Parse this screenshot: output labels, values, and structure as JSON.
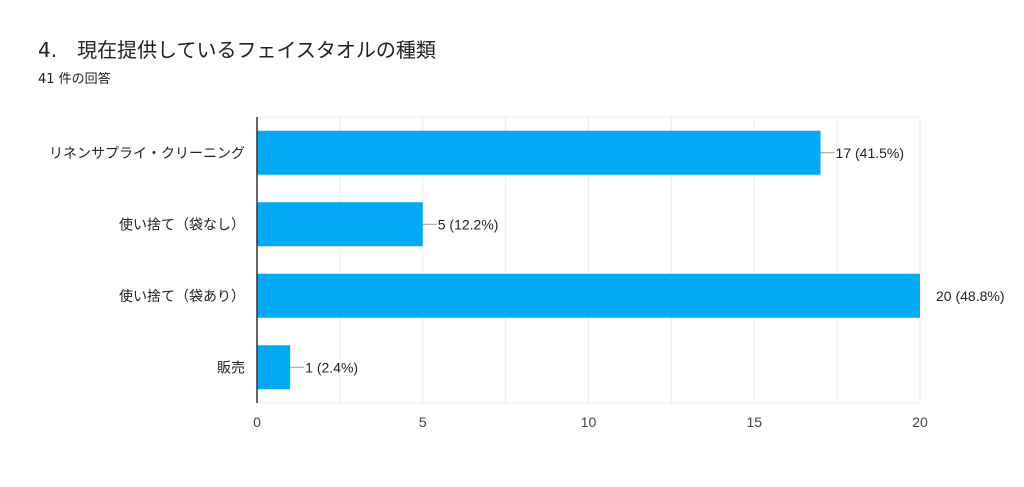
{
  "chart_data": {
    "type": "bar",
    "orientation": "horizontal",
    "title": "4.　現在提供しているフェイスタオルの種類",
    "subtitle": "41 件の回答",
    "categories": [
      "リネンサプライ・クリーニング",
      "使い捨て（袋なし）",
      "使い捨て（袋あり）",
      "販売"
    ],
    "values": [
      17,
      5,
      20,
      1
    ],
    "data_labels": [
      "17 (41.5%)",
      "5 (12.2%)",
      "20 (48.8%)",
      "1 (2.4%)"
    ],
    "xlim": [
      0,
      20
    ],
    "xticks": [
      "0",
      "5",
      "10",
      "15",
      "20"
    ],
    "xtick_values": [
      0,
      5,
      10,
      15,
      20
    ],
    "minor_grid_step": 2.5,
    "grid": true,
    "bar_color": "#03a9f4"
  }
}
